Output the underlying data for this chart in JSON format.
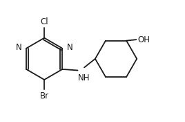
{
  "background": "#ffffff",
  "line_color": "#1a1a1a",
  "text_color": "#1a1a1a",
  "label_N": "N",
  "label_NH": "NH",
  "label_Cl": "Cl",
  "label_Br": "Br",
  "label_OH": "OH",
  "figsize": [
    2.68,
    1.76
  ],
  "dpi": 100,
  "lw": 1.3,
  "font_size": 8.5
}
